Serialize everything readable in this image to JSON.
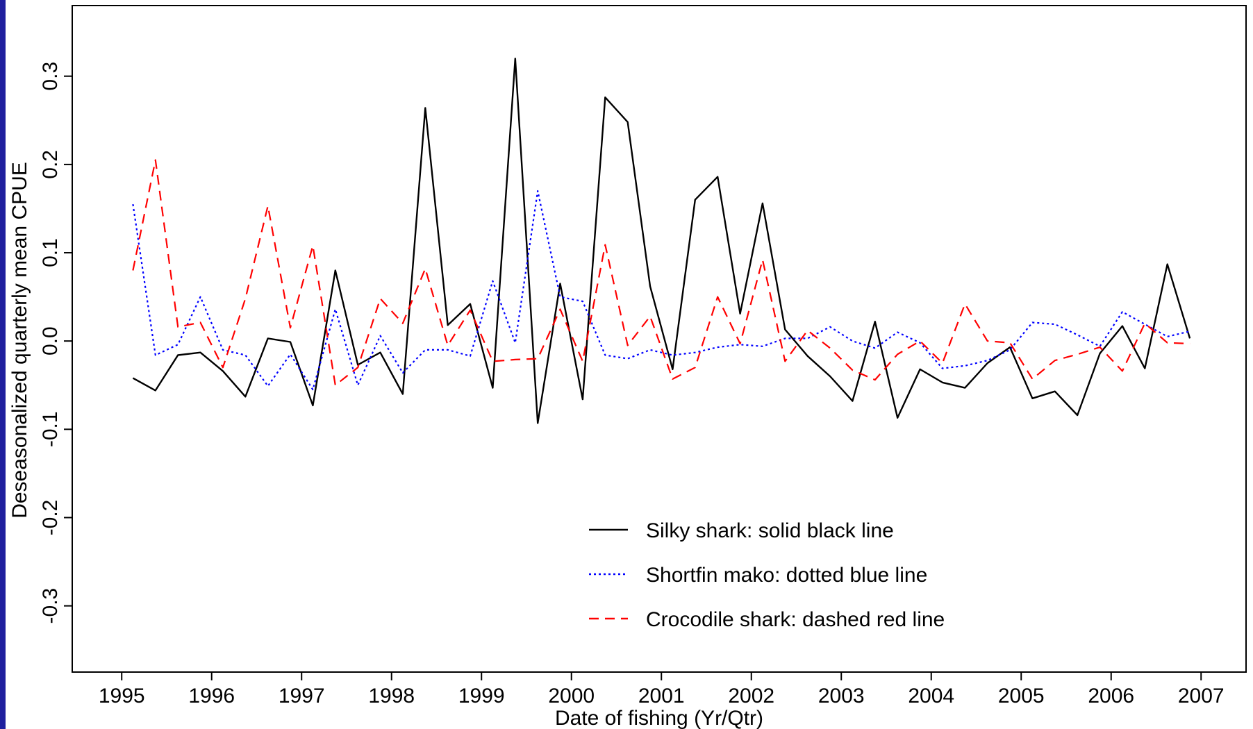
{
  "colors": {
    "silky": "#000000",
    "mako": "#0000ff",
    "croc": "#ff0000",
    "frame": "#000000",
    "left_band": "#1f1f9e"
  },
  "chart_data": {
    "type": "line",
    "xlabel": "Date of fishing (Yr/Qtr)",
    "ylabel": "Deseasonalized quarterly mean CPUE",
    "xlim": [
      1994.45,
      2007.5
    ],
    "ylim": [
      -0.375,
      0.38
    ],
    "xticks": [
      1995,
      1996,
      1997,
      1998,
      1999,
      2000,
      2001,
      2002,
      2003,
      2004,
      2005,
      2006,
      2007
    ],
    "xtick_labels": [
      "1995",
      "1996",
      "1997",
      "1998",
      "1999",
      "2000",
      "2001",
      "2002",
      "2003",
      "2004",
      "2005",
      "2006",
      "2007"
    ],
    "yticks": [
      -0.3,
      -0.2,
      -0.1,
      0.0,
      0.1,
      0.2,
      0.3
    ],
    "ytick_labels": [
      "-0.3",
      "-0.2",
      "-0.1",
      "0.0",
      "0.1",
      "0.2",
      "0.3"
    ],
    "grid": false,
    "legend_placement": "bottom-center",
    "x": [
      1995.125,
      1995.375,
      1995.625,
      1995.875,
      1996.125,
      1996.375,
      1996.625,
      1996.875,
      1997.125,
      1997.375,
      1997.625,
      1997.875,
      1998.125,
      1998.375,
      1998.625,
      1998.875,
      1999.125,
      1999.375,
      1999.625,
      1999.875,
      2000.125,
      2000.375,
      2000.625,
      2000.875,
      2001.125,
      2001.375,
      2001.625,
      2001.875,
      2002.125,
      2002.375,
      2002.625,
      2002.875,
      2003.125,
      2003.375,
      2003.625,
      2003.875,
      2004.125,
      2004.375,
      2004.625,
      2004.875,
      2005.125,
      2005.375,
      2005.625,
      2005.875,
      2006.125,
      2006.375,
      2006.625,
      2006.875
    ],
    "series": [
      {
        "name": "Silky shark: solid black line",
        "key": "silky",
        "style": "solid",
        "values": [
          -0.042,
          -0.056,
          -0.016,
          -0.013,
          -0.034,
          -0.063,
          0.003,
          -0.001,
          -0.073,
          0.08,
          -0.027,
          -0.013,
          -0.06,
          0.264,
          0.018,
          0.042,
          -0.053,
          0.32,
          -0.093,
          0.065,
          -0.066,
          0.276,
          0.248,
          0.062,
          -0.032,
          0.16,
          0.186,
          0.031,
          0.156,
          0.013,
          -0.017,
          -0.04,
          -0.068,
          0.022,
          -0.087,
          -0.032,
          -0.047,
          -0.053,
          -0.025,
          -0.007,
          -0.065,
          -0.057,
          -0.084,
          -0.014,
          0.017,
          -0.031,
          0.087,
          0.003
        ]
      },
      {
        "name": "Shortfin mako: dotted blue line",
        "key": "mako",
        "style": "dotted",
        "values": [
          0.155,
          -0.016,
          -0.004,
          0.05,
          -0.01,
          -0.016,
          -0.051,
          -0.015,
          -0.055,
          0.036,
          -0.05,
          0.006,
          -0.036,
          -0.01,
          -0.01,
          -0.017,
          0.068,
          -0.002,
          0.17,
          0.05,
          0.045,
          -0.016,
          -0.02,
          -0.01,
          -0.016,
          -0.013,
          -0.007,
          -0.004,
          -0.006,
          0.003,
          0.003,
          0.016,
          0.0,
          -0.008,
          0.01,
          -0.002,
          -0.031,
          -0.028,
          -0.022,
          -0.01,
          0.021,
          0.019,
          0.007,
          -0.006,
          0.033,
          0.019,
          0.005,
          0.011
        ]
      },
      {
        "name": "Crocodile shark: dashed red line",
        "key": "croc",
        "style": "dashed",
        "values": [
          0.08,
          0.205,
          0.016,
          0.021,
          -0.03,
          0.048,
          0.153,
          0.015,
          0.108,
          -0.05,
          -0.03,
          0.048,
          0.02,
          0.082,
          -0.005,
          0.035,
          -0.023,
          -0.021,
          -0.02,
          0.036,
          -0.023,
          0.109,
          -0.005,
          0.028,
          -0.043,
          -0.03,
          0.05,
          -0.003,
          0.092,
          -0.023,
          0.012,
          -0.008,
          -0.033,
          -0.044,
          -0.015,
          0.0,
          -0.025,
          0.042,
          0.0,
          -0.002,
          -0.043,
          -0.022,
          -0.015,
          -0.007,
          -0.034,
          0.02,
          -0.002,
          -0.003
        ]
      }
    ]
  }
}
